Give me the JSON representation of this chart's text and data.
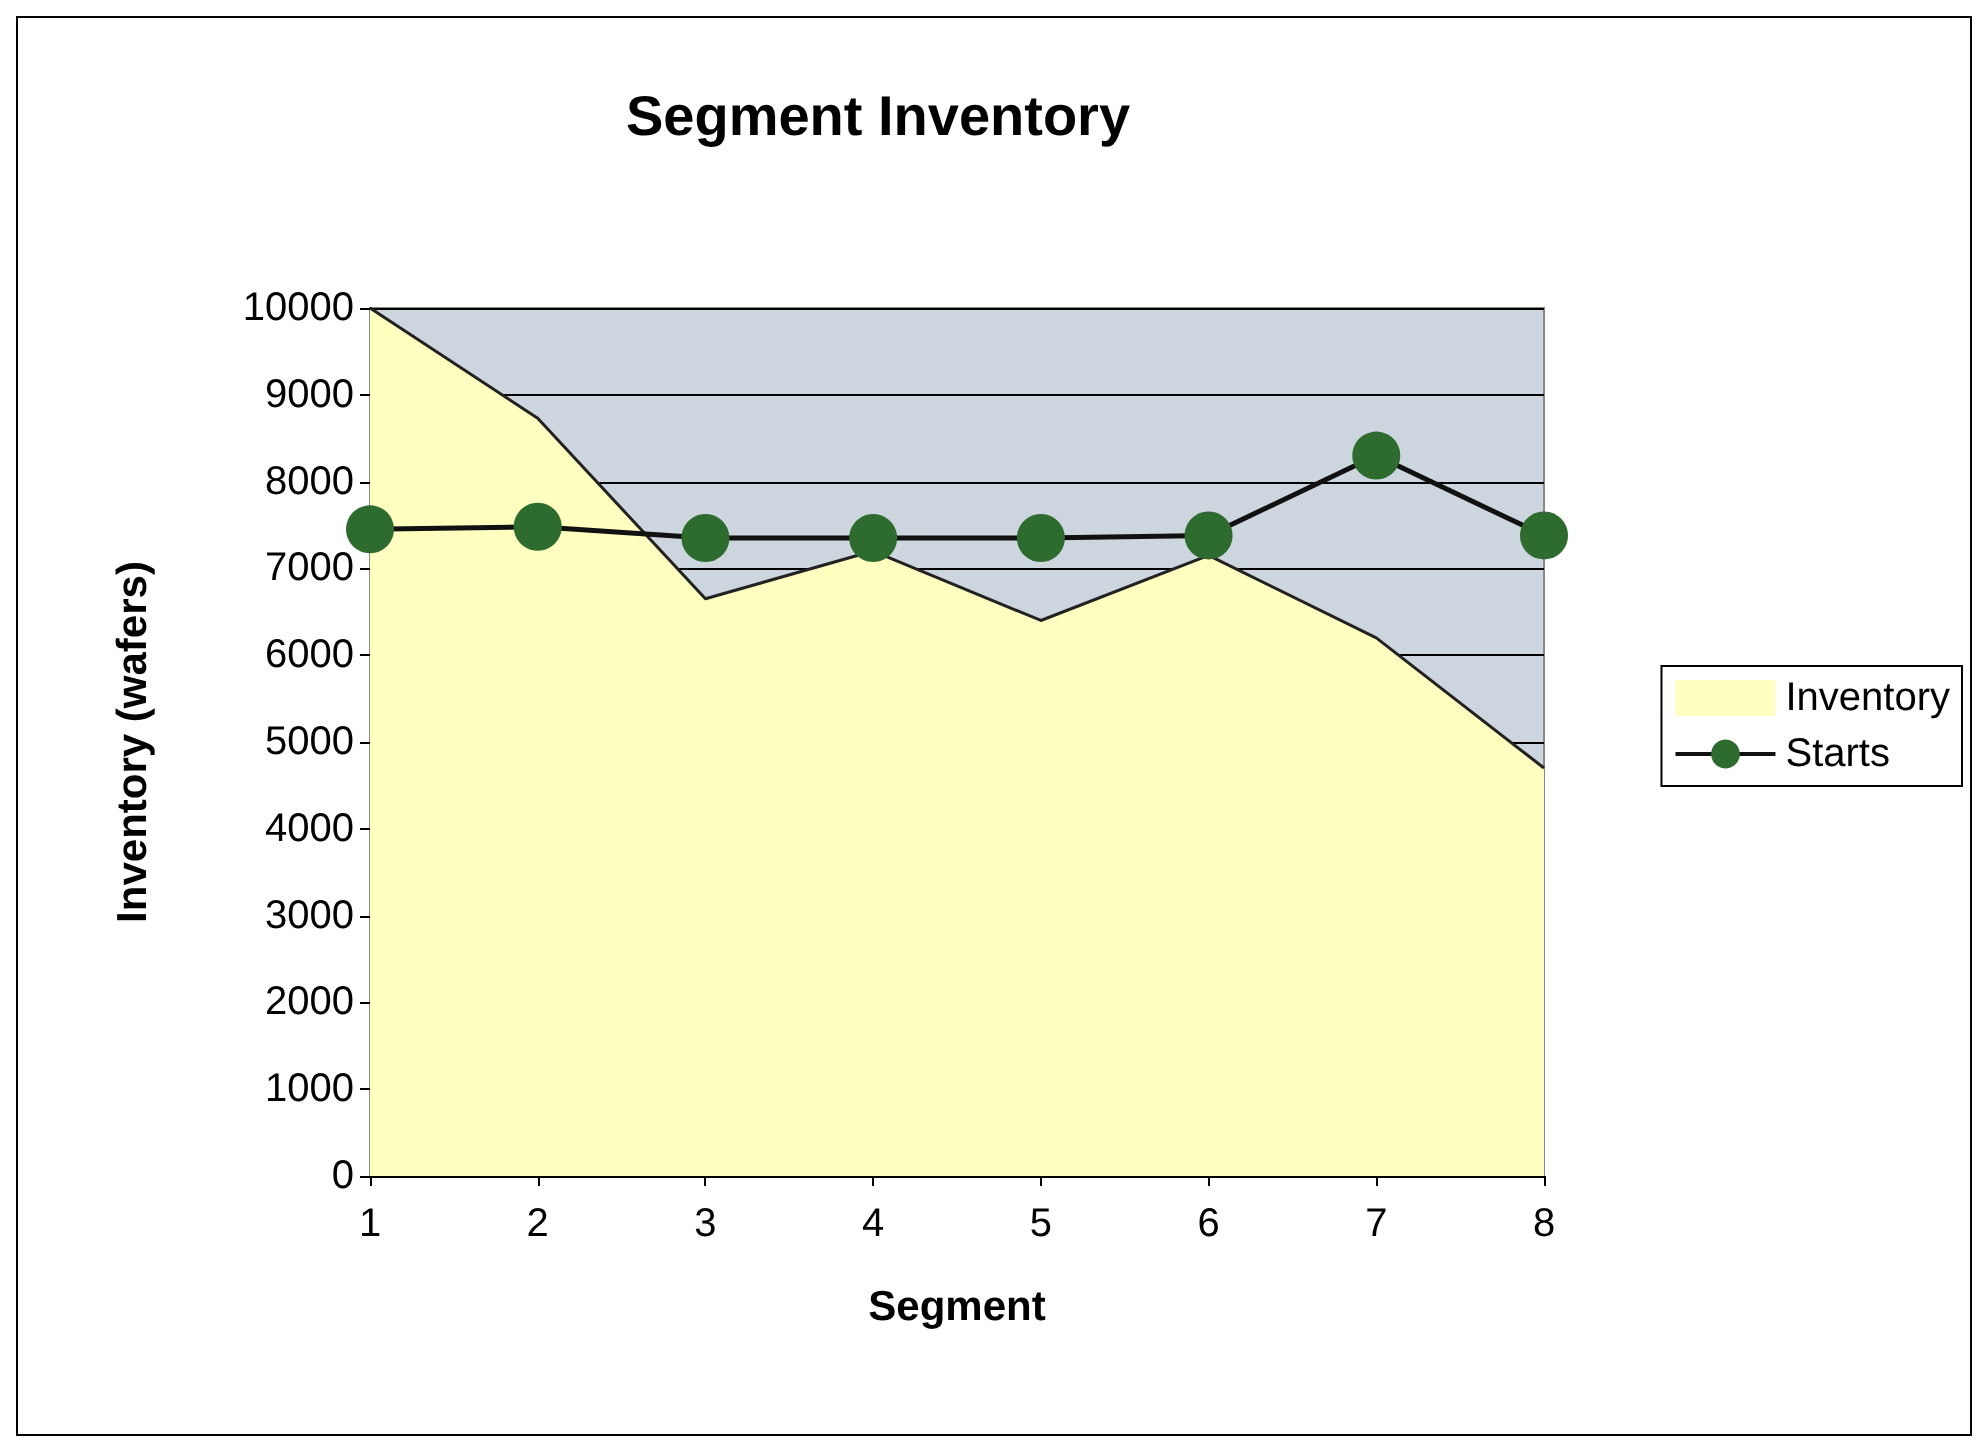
{
  "chart_data": {
    "type": "area",
    "title": "Segment Inventory",
    "xlabel": "Segment",
    "ylabel": "Inventory (wafers)",
    "x": [
      1,
      2,
      3,
      4,
      5,
      6,
      7,
      8
    ],
    "xlim": [
      1,
      8
    ],
    "xticks": [
      1,
      2,
      3,
      4,
      5,
      6,
      7,
      8
    ],
    "ylim": [
      0,
      10000
    ],
    "yticks": [
      0,
      1000,
      2000,
      3000,
      4000,
      5000,
      6000,
      7000,
      8000,
      9000,
      10000
    ],
    "grid": "y",
    "legend": "right",
    "series": [
      {
        "name": "Inventory",
        "color": "#ffffc0",
        "values": [
          10000,
          8730,
          6650,
          7200,
          6400,
          7150,
          6200,
          4700
        ]
      },
      {
        "name": "Starts",
        "type": "line",
        "color": "#2e6b2e",
        "marker": "circle",
        "values": [
          7450,
          7480,
          7350,
          7350,
          7350,
          7380,
          8300,
          7380
        ]
      }
    ]
  }
}
